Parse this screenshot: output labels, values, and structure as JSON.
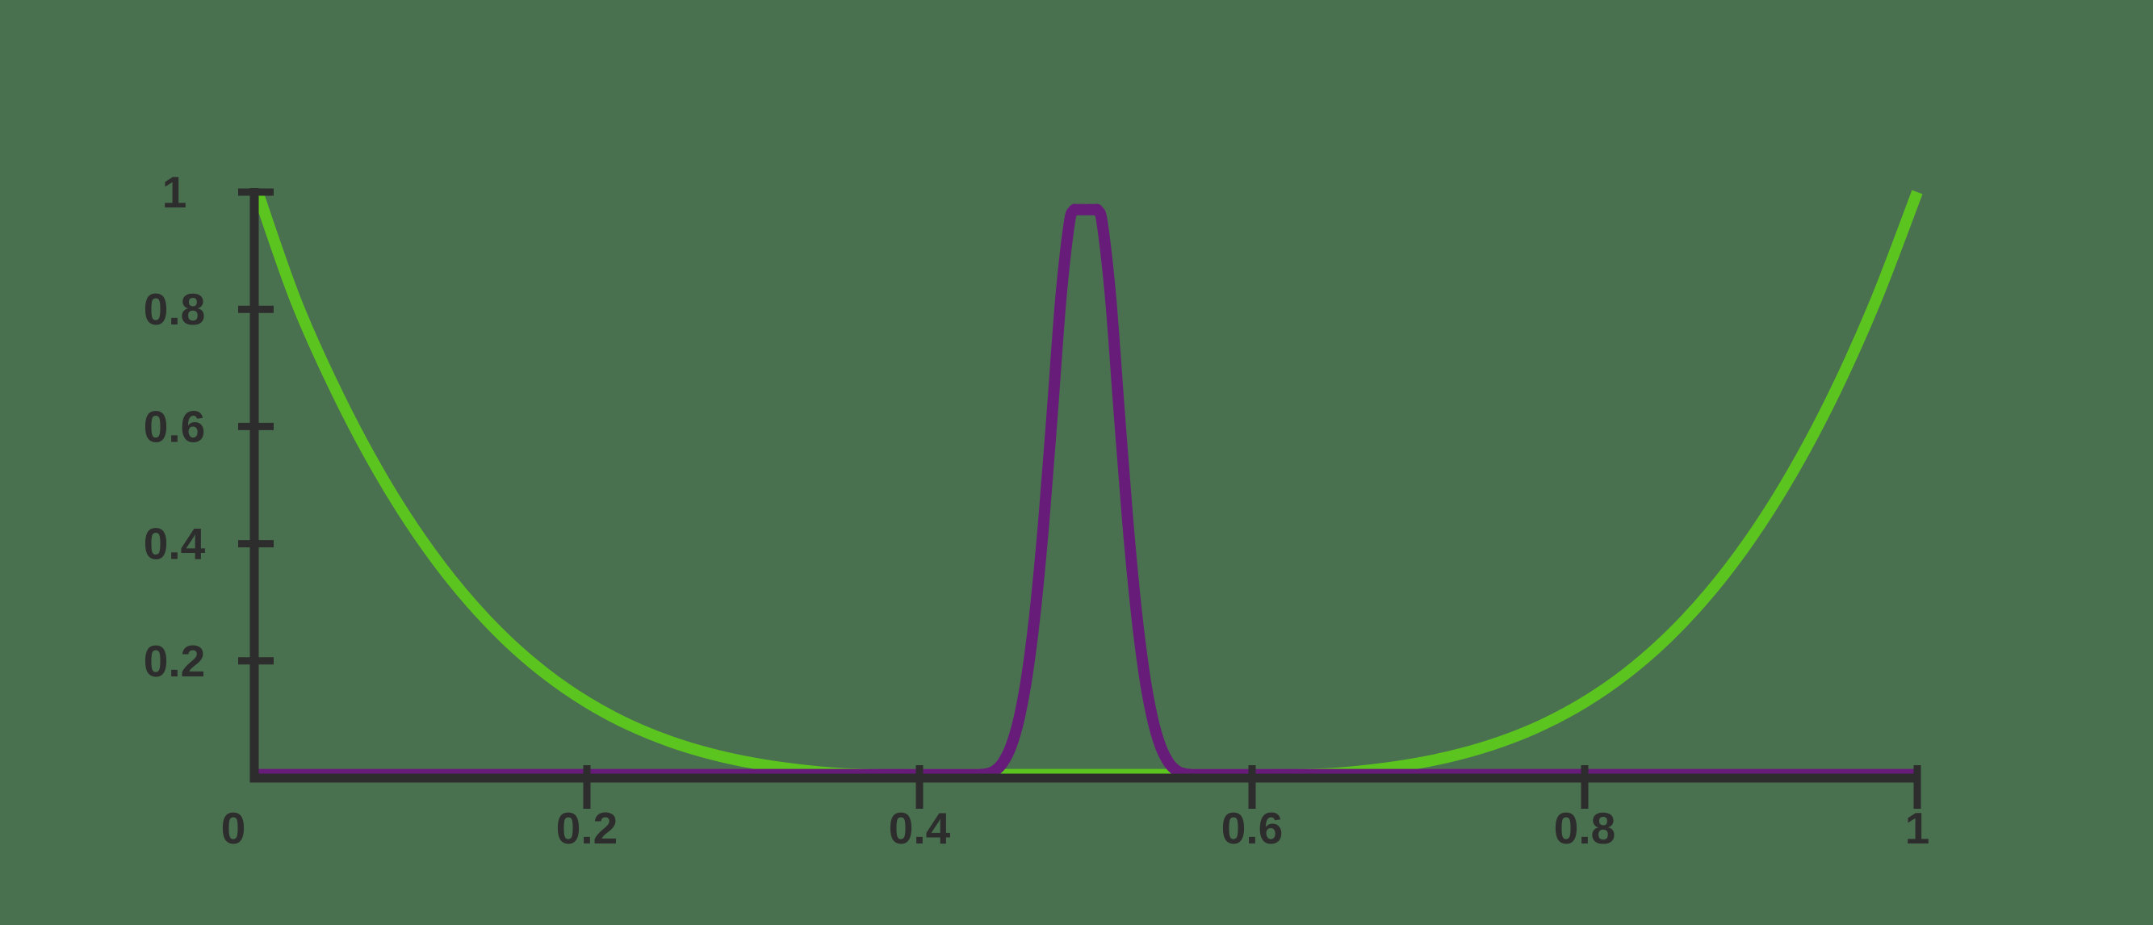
{
  "figure": {
    "background_color": "#4A714F",
    "axis_color": "#2D2D2D",
    "label_color": "#2D2D2D",
    "origin_label": "0"
  },
  "chart_data": {
    "type": "line",
    "title": "",
    "xlabel": "",
    "ylabel": "",
    "xlim": [
      0,
      1
    ],
    "ylim": [
      0,
      1
    ],
    "grid": false,
    "legend": false,
    "x_ticks": {
      "values": [
        0.2,
        0.4,
        0.6,
        0.8,
        1
      ],
      "labels": [
        "0.2",
        "0.4",
        "0.6",
        "0.8",
        "1"
      ]
    },
    "y_ticks": {
      "values": [
        0.2,
        0.4,
        0.6,
        0.8,
        1
      ],
      "labels": [
        "0.2",
        "0.4",
        "0.6",
        "0.8",
        "1"
      ]
    },
    "series": [
      {
        "name": "green_curve",
        "color": "#5CC41F",
        "description": "U-shaped curve, value 1 at x=0 and x=1, minimum ~0 near x=0.5 (approx (2x-1)^4)",
        "points": [
          [
            0.002,
            1
          ],
          [
            0.025,
            0.8145
          ],
          [
            0.05,
            0.6561
          ],
          [
            0.075,
            0.522
          ],
          [
            0.1,
            0.4096
          ],
          [
            0.125,
            0.3164
          ],
          [
            0.15,
            0.2401
          ],
          [
            0.175,
            0.1785
          ],
          [
            0.2,
            0.1296
          ],
          [
            0.225,
            0.0915
          ],
          [
            0.25,
            0.0625
          ],
          [
            0.275,
            0.041
          ],
          [
            0.3,
            0.0256
          ],
          [
            0.325,
            0.015
          ],
          [
            0.35,
            0.0081
          ],
          [
            0.375,
            0.006
          ],
          [
            0.4,
            0.006
          ],
          [
            0.425,
            0.006
          ],
          [
            0.45,
            0.006
          ],
          [
            0.475,
            0.006
          ],
          [
            0.5,
            0.006
          ],
          [
            0.525,
            0.006
          ],
          [
            0.55,
            0.006
          ],
          [
            0.575,
            0.006
          ],
          [
            0.6,
            0.006
          ],
          [
            0.625,
            0.006
          ],
          [
            0.65,
            0.0081
          ],
          [
            0.675,
            0.015
          ],
          [
            0.7,
            0.0256
          ],
          [
            0.725,
            0.041
          ],
          [
            0.75,
            0.0625
          ],
          [
            0.775,
            0.0915
          ],
          [
            0.8,
            0.1296
          ],
          [
            0.825,
            0.1785
          ],
          [
            0.85,
            0.2401
          ],
          [
            0.875,
            0.3164
          ],
          [
            0.9,
            0.4096
          ],
          [
            0.925,
            0.522
          ],
          [
            0.95,
            0.6561
          ],
          [
            0.975,
            0.8145
          ],
          [
            1,
            1
          ]
        ]
      },
      {
        "name": "purple_curve",
        "color": "#681C7A",
        "description": "Flat near 0 with a sharp narrow peak at x=0.5, plateau clipped at ~0.97",
        "points": [
          [
            0,
            0.006
          ],
          [
            0.1,
            0.006
          ],
          [
            0.2,
            0.006
          ],
          [
            0.3,
            0.006
          ],
          [
            0.38,
            0.006
          ],
          [
            0.42,
            0.006
          ],
          [
            0.435,
            0.006
          ],
          [
            0.44,
            0.007
          ],
          [
            0.445,
            0.012
          ],
          [
            0.45,
            0.026
          ],
          [
            0.455,
            0.054
          ],
          [
            0.46,
            0.103
          ],
          [
            0.465,
            0.181
          ],
          [
            0.47,
            0.295
          ],
          [
            0.475,
            0.447
          ],
          [
            0.48,
            0.629
          ],
          [
            0.485,
            0.818
          ],
          [
            0.49,
            0.945
          ],
          [
            0.4925,
            0.968
          ],
          [
            0.495,
            0.97
          ],
          [
            0.5,
            0.97
          ],
          [
            0.505,
            0.97
          ],
          [
            0.5075,
            0.968
          ],
          [
            0.51,
            0.945
          ],
          [
            0.515,
            0.818
          ],
          [
            0.52,
            0.629
          ],
          [
            0.525,
            0.447
          ],
          [
            0.53,
            0.295
          ],
          [
            0.535,
            0.181
          ],
          [
            0.54,
            0.103
          ],
          [
            0.545,
            0.054
          ],
          [
            0.55,
            0.026
          ],
          [
            0.555,
            0.012
          ],
          [
            0.56,
            0.007
          ],
          [
            0.565,
            0.006
          ],
          [
            0.58,
            0.006
          ],
          [
            0.62,
            0.006
          ],
          [
            0.7,
            0.006
          ],
          [
            0.8,
            0.006
          ],
          [
            0.9,
            0.006
          ],
          [
            1,
            0.006
          ]
        ]
      }
    ]
  }
}
